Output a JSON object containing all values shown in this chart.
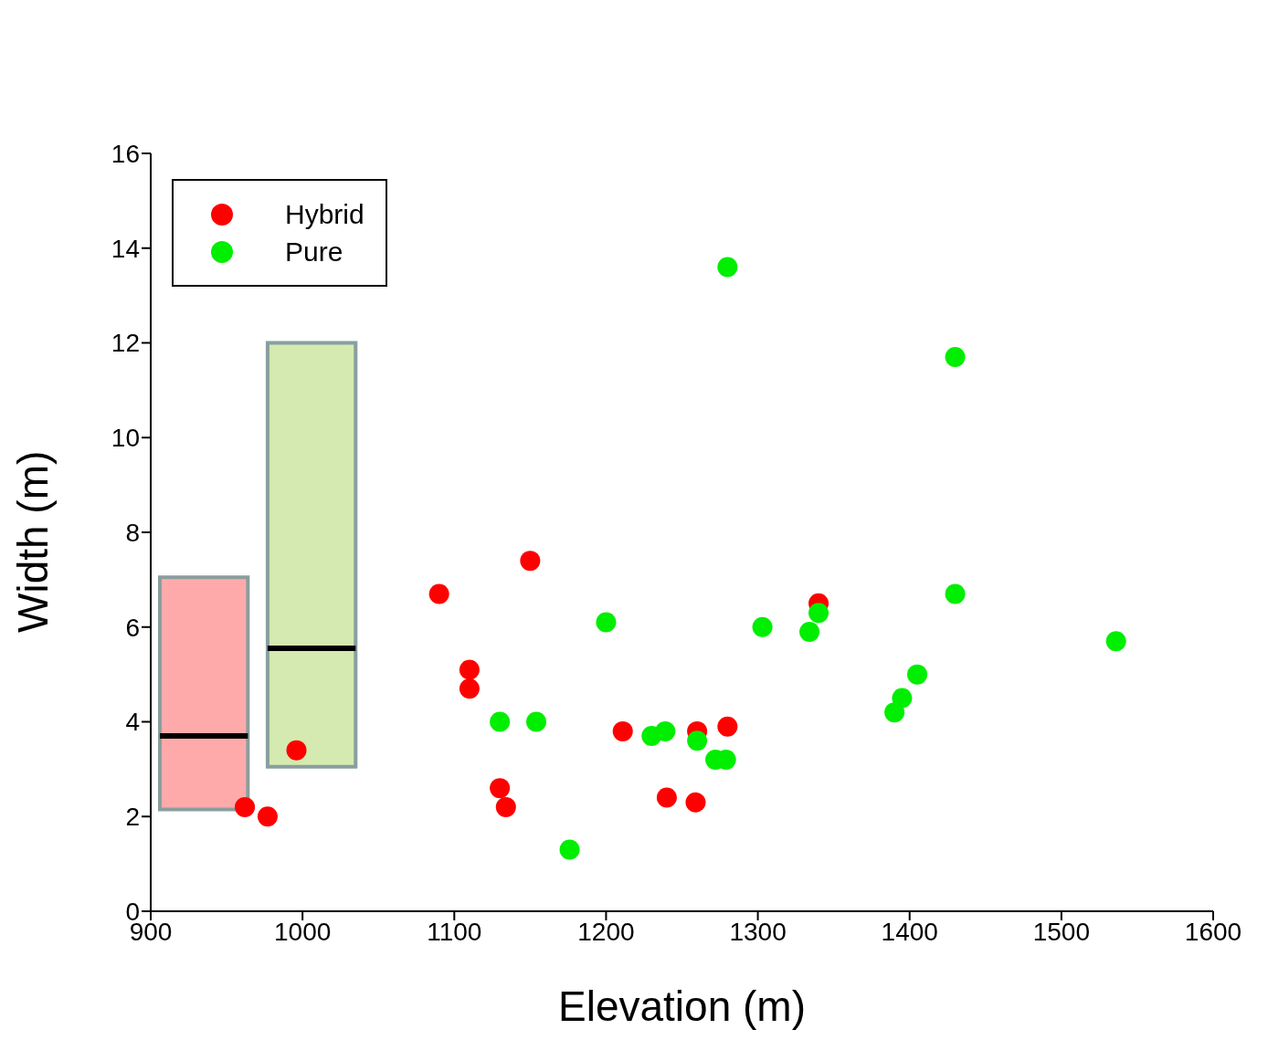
{
  "chart_data": {
    "type": "scatter",
    "xlabel": "Elevation (m)",
    "ylabel": "Width (m)",
    "xlim": [
      900,
      1600
    ],
    "xticks": [
      900,
      1000,
      1100,
      1200,
      1300,
      1400,
      1500,
      1600
    ],
    "ylim": [
      0,
      16
    ],
    "yticks": [
      0,
      2,
      4,
      6,
      8,
      10,
      12,
      14,
      16
    ],
    "legend": "top left",
    "marker": "circle",
    "grid": false,
    "series": [
      {
        "name": "Hybrid",
        "color": "#ff0000",
        "x": [
          962,
          977,
          996,
          1090,
          1110,
          1110,
          1150,
          1130,
          1134,
          1211,
          1240,
          1260,
          1259,
          1280,
          1340
        ],
        "values": [
          2.2,
          2.0,
          3.4,
          6.7,
          5.1,
          4.7,
          7.4,
          2.6,
          2.2,
          3.8,
          2.4,
          3.8,
          2.3,
          3.9,
          6.5
        ]
      },
      {
        "name": "Pure",
        "color": "#00ee00",
        "x": [
          1280,
          1430,
          1430,
          1536,
          1405,
          1395,
          1390,
          1340,
          1334,
          1303,
          1200,
          1130,
          1154,
          1176,
          1230,
          1239,
          1260,
          1272,
          1279
        ],
        "values": [
          13.6,
          11.7,
          6.7,
          5.7,
          5.0,
          4.5,
          4.2,
          6.3,
          5.9,
          6.0,
          6.1,
          4.0,
          4.0,
          1.3,
          3.7,
          3.8,
          3.6,
          3.2,
          3.2
        ]
      },
      {
        "type": "box",
        "color": "#ffaaaa",
        "x": [
          935
        ],
        "boxes": [
          {
            "low": 2.15,
            "q1": 2.15,
            "median": 3.7,
            "q3": 7.05,
            "high": 7.05
          }
        ]
      },
      {
        "type": "box",
        "color": "#d4eab0",
        "x": [
          1006
        ],
        "boxes": [
          {
            "low": 3.05,
            "q1": 3.05,
            "median": 5.55,
            "q3": 12.0,
            "high": 12.0
          }
        ]
      }
    ]
  }
}
